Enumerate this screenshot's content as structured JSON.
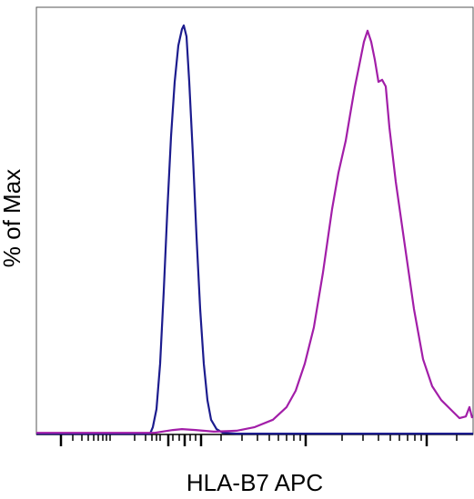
{
  "chart_data": {
    "type": "line",
    "xlabel": "HLA-B7 APC",
    "ylabel": "% of Max",
    "xlim": [
      0,
      480
    ],
    "ylim": [
      0,
      104
    ],
    "xticks": [
      27,
      145,
      163,
      181,
      296,
      429
    ],
    "xminor_ticks": [
      40,
      50,
      57,
      63,
      68,
      73,
      77,
      81,
      108,
      120,
      127,
      132,
      136,
      150,
      157,
      169,
      175,
      203,
      226,
      243,
      256,
      266,
      275,
      283,
      290,
      336,
      359,
      376,
      389,
      399,
      408,
      416,
      423,
      462
    ],
    "series": [
      {
        "color": "#1c1c8e",
        "x": [
          0,
          125,
          128,
          132,
          136,
          140,
          144,
          148,
          152,
          156,
          160,
          162,
          165,
          168,
          172,
          176,
          180,
          184,
          188,
          192,
          198,
          205,
          220,
          480
        ],
        "values": [
          0.2,
          0.2,
          1.8,
          6.2,
          17.3,
          35.1,
          55.1,
          72.9,
          86.2,
          95.1,
          99.1,
          100,
          97.3,
          86.2,
          68.4,
          48.4,
          30.7,
          17.3,
          8.4,
          3.6,
          1.3,
          0.4,
          0.2,
          0.2
        ]
      },
      {
        "color": "#a21ea8",
        "x": [
          0,
          130,
          150,
          160,
          175,
          195,
          220,
          240,
          260,
          275,
          285,
          295,
          305,
          315,
          325,
          332,
          340,
          345,
          350,
          355,
          360,
          364,
          368,
          372,
          376,
          380,
          384,
          388,
          395,
          405,
          415,
          425,
          435,
          445,
          455,
          465,
          472,
          476,
          479
        ],
        "values": [
          0.4,
          0.4,
          1.1,
          1.3,
          1.1,
          0.7,
          0.9,
          1.8,
          3.6,
          6.7,
          10.7,
          17.3,
          26.2,
          39.6,
          55.1,
          64,
          71.8,
          78.4,
          84.9,
          90.4,
          96,
          98.7,
          96,
          91.6,
          86.2,
          86.7,
          85.1,
          75.1,
          61.8,
          46.2,
          30.7,
          18.4,
          11.8,
          8.4,
          6.2,
          4,
          4.4,
          6.7,
          4
        ]
      }
    ]
  }
}
